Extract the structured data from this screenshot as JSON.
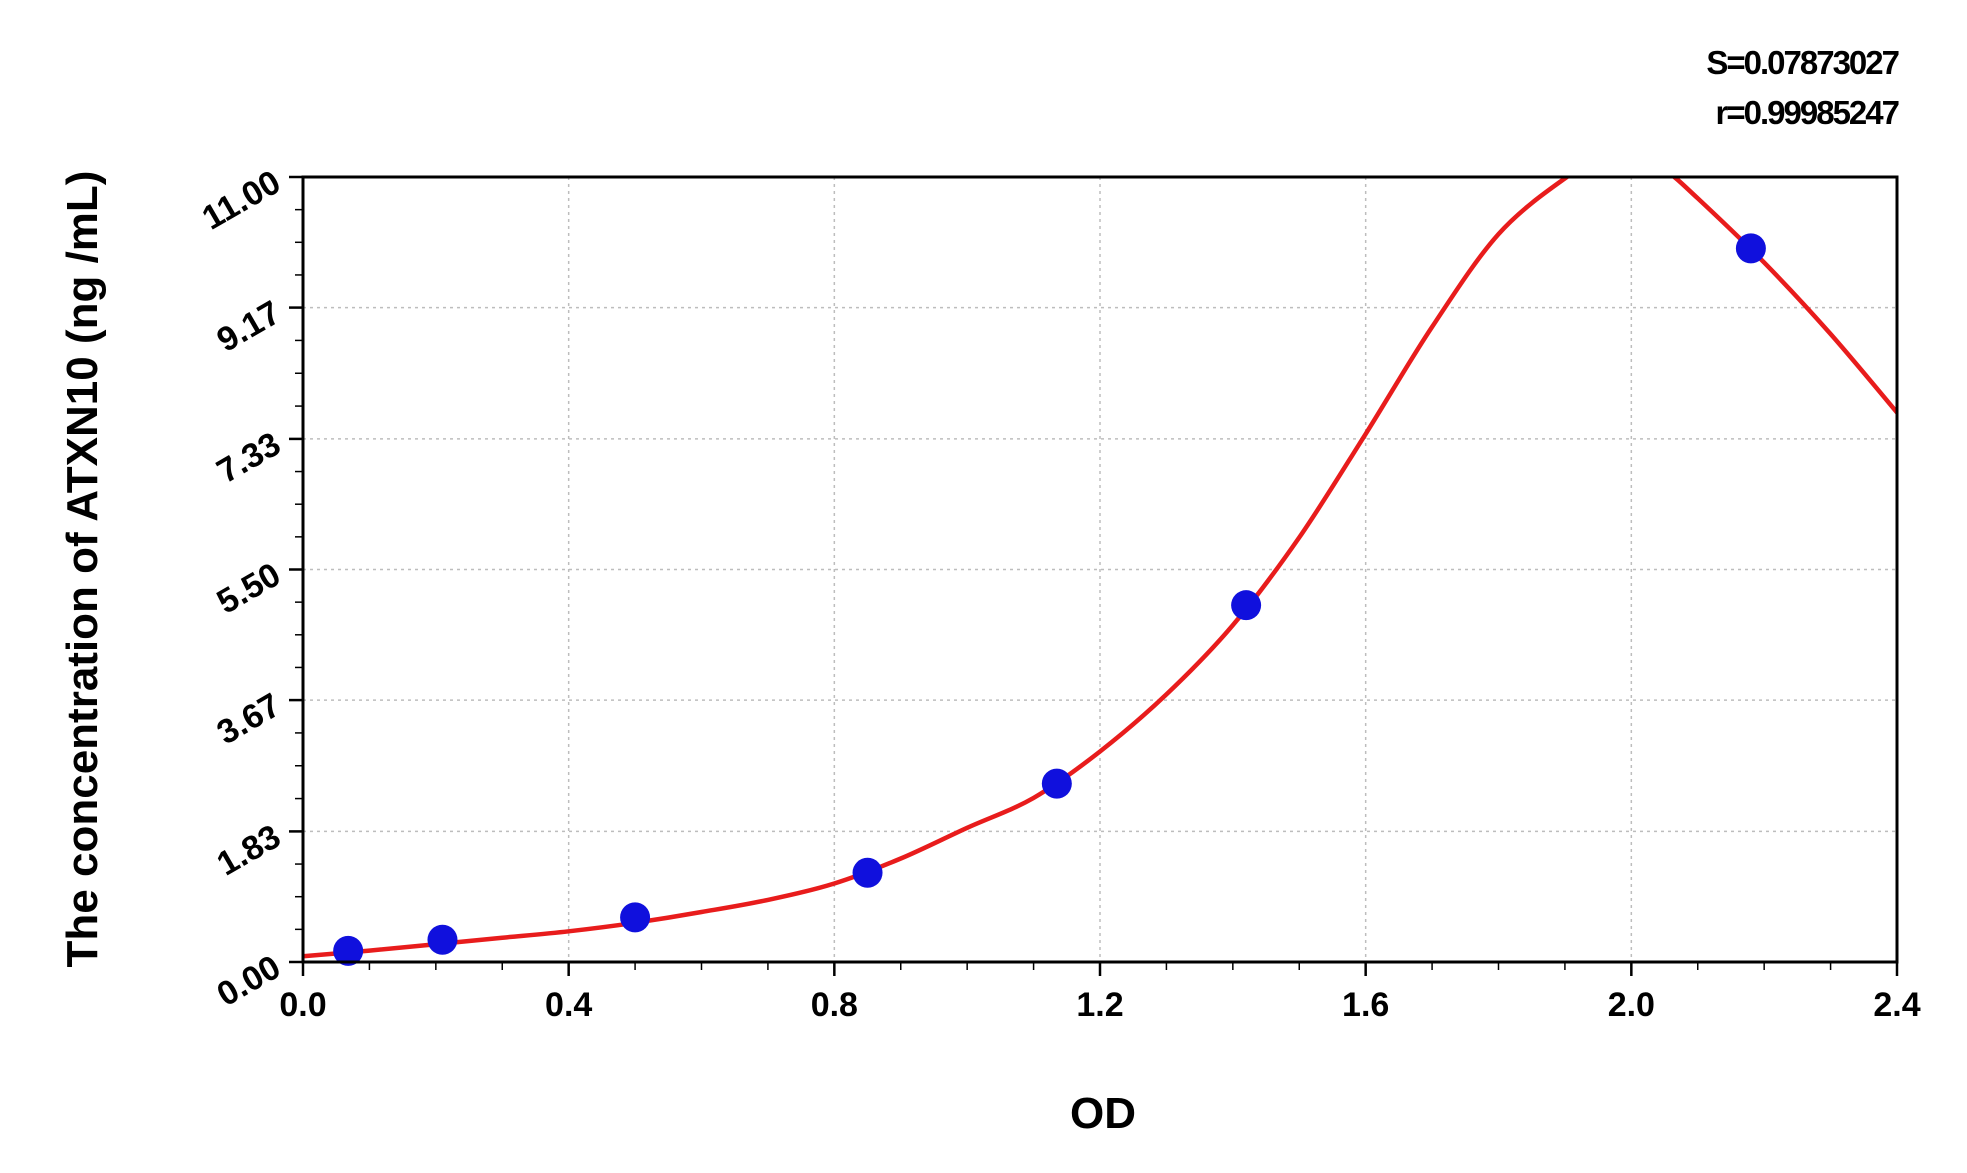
{
  "chart_data": {
    "type": "scatter",
    "title": "",
    "xlabel": "OD",
    "ylabel": "The concentration of ATXN10 (ng /mL)",
    "xlim": [
      0.0,
      2.4
    ],
    "ylim": [
      0.0,
      11.0
    ],
    "x_ticks": [
      "0.0",
      "0.4",
      "0.8",
      "1.2",
      "1.6",
      "2.0",
      "2.4"
    ],
    "y_ticks": [
      "0.00",
      "1.83",
      "3.67",
      "5.50",
      "7.33",
      "9.17",
      "11.00"
    ],
    "grid": true,
    "stats": {
      "s_label": "S=0.07873027",
      "r_label": "r=0.99985247"
    },
    "colors": {
      "points": "#1010dd",
      "curve": "#e81c1c",
      "grid": "#bdbdbd"
    },
    "series": [
      {
        "kind": "points",
        "x": [
          0.068,
          0.21,
          0.5,
          0.85,
          1.135,
          1.42,
          2.18
        ],
        "y": [
          0.156,
          0.312,
          0.625,
          1.25,
          2.5,
          5.0,
          10.0
        ]
      },
      {
        "kind": "fit_curve",
        "x": [
          0.0,
          0.1,
          0.2,
          0.3,
          0.4,
          0.5,
          0.6,
          0.7,
          0.8,
          0.9,
          1.0,
          1.1,
          1.2,
          1.3,
          1.4,
          1.5,
          1.6,
          1.7,
          1.8,
          1.9,
          1.95,
          2.0,
          2.05,
          2.1,
          2.2,
          2.3,
          2.4
        ],
        "y": [
          0.08,
          0.16,
          0.25,
          0.34,
          0.43,
          0.55,
          0.7,
          0.87,
          1.1,
          1.45,
          1.88,
          2.3,
          2.95,
          3.75,
          4.72,
          5.95,
          7.4,
          8.9,
          10.2,
          10.98,
          11.2,
          11.3,
          11.1,
          10.7,
          9.8,
          8.8,
          7.7
        ]
      }
    ]
  }
}
